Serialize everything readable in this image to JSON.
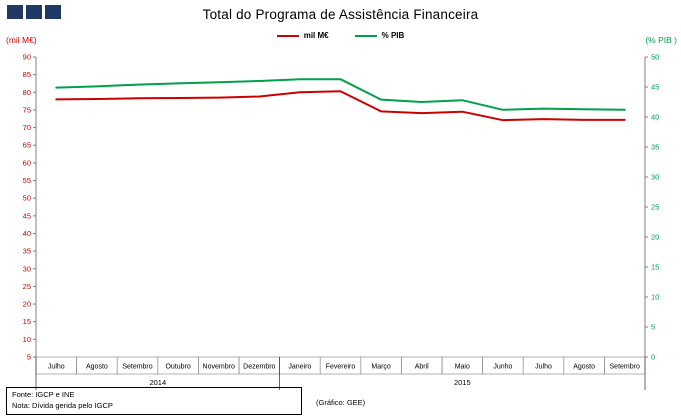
{
  "header": {
    "title": "Total do Programa de Assistência Financeira",
    "logo_color": "#1F3864"
  },
  "legend": [
    {
      "label": "mil M€",
      "color": "#CC0000"
    },
    {
      "label": "% PIB",
      "color": "#00A14B"
    }
  ],
  "axes": {
    "left_caption": "(mil M€)",
    "right_caption": "(% PIB )"
  },
  "footer": {
    "fonte": "Fonte: IGCP e INE",
    "nota": "Nota: Dívida gerida pelo IGCP",
    "grafico": "(Gráfico: GEE)"
  },
  "chart_data": {
    "type": "line",
    "title": "Total do Programa de Assistência Financeira",
    "categories": [
      "Julho",
      "Agosto",
      "Setembro",
      "Outubro",
      "Novembro",
      "Dezembro",
      "Janeiro",
      "Fevereiro",
      "Março",
      "Abril",
      "Maio",
      "Junho",
      "Julho",
      "Agosto",
      "Setembro"
    ],
    "year_groups": [
      {
        "label": "2014",
        "span": 6
      },
      {
        "label": "2015",
        "span": 9
      }
    ],
    "series": [
      {
        "name": "mil M€",
        "axis": "left",
        "color": "#CC0000",
        "values": [
          78.0,
          78.1,
          78.3,
          78.4,
          78.5,
          78.8,
          80.0,
          80.3,
          74.6,
          74.1,
          74.5,
          72.1,
          72.4,
          72.2,
          72.2
        ]
      },
      {
        "name": "% PIB",
        "axis": "right",
        "color": "#00A14B",
        "values": [
          44.9,
          45.1,
          45.4,
          45.6,
          45.8,
          46.0,
          46.3,
          46.3,
          42.9,
          42.5,
          42.8,
          41.2,
          41.4,
          41.3,
          41.2
        ]
      }
    ],
    "left_axis": {
      "label": "(mil M€)",
      "min": 5,
      "max": 90,
      "step": 5
    },
    "right_axis": {
      "label": "(% PIB )",
      "min": 0,
      "max": 50,
      "step": 5
    },
    "grid": false,
    "legend_position": "top"
  }
}
